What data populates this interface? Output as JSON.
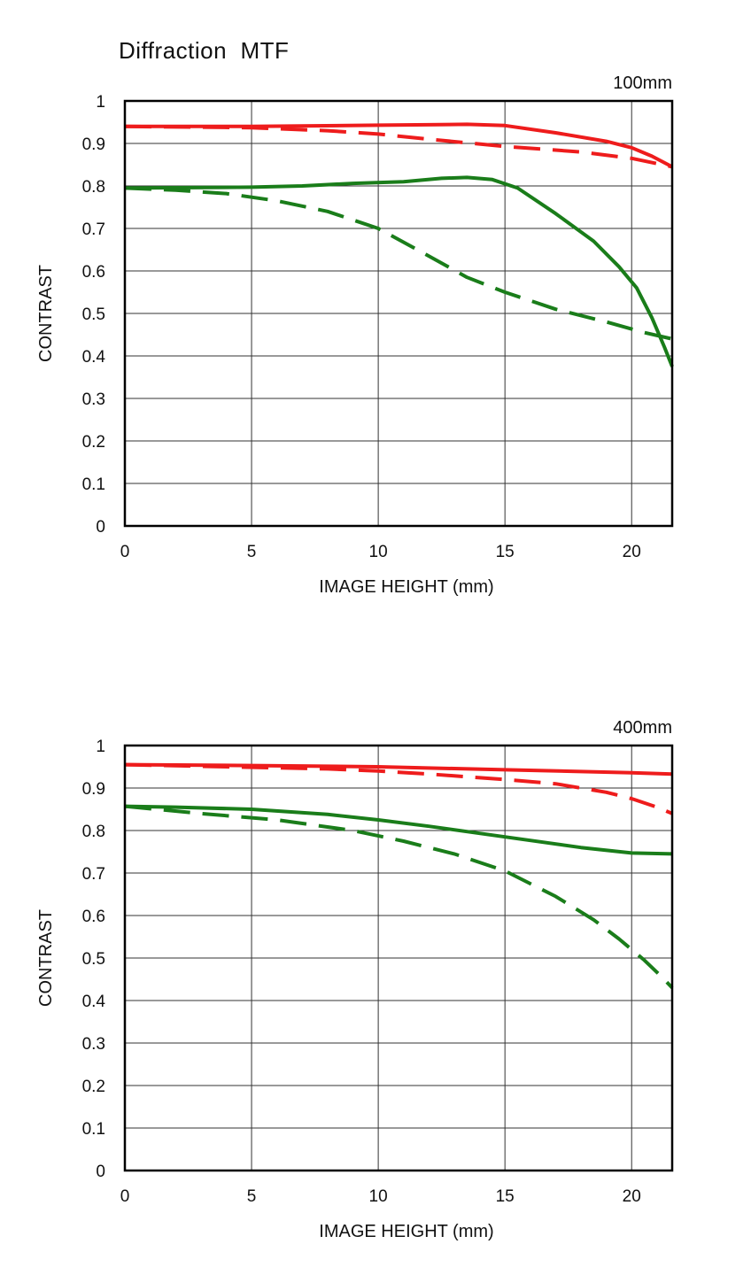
{
  "page": {
    "title": "Diffraction  MTF"
  },
  "colors": {
    "red": "#ee1c1c",
    "green": "#1a7d1a",
    "grid": "#333333",
    "frame": "#000000"
  },
  "chart_data": [
    {
      "type": "line",
      "focal_label": "100mm",
      "xlabel": "IMAGE HEIGHT (mm)",
      "ylabel": "CONTRAST",
      "xlim": [
        0,
        21.6
      ],
      "ylim": [
        0,
        1
      ],
      "xticks": [
        "0",
        "5",
        "10",
        "15",
        "20"
      ],
      "yticks": [
        "0",
        "0.1",
        "0.2",
        "0.3",
        "0.4",
        "0.5",
        "0.6",
        "0.7",
        "0.8",
        "0.9",
        "1"
      ],
      "grid": true,
      "series": [
        {
          "color": "red",
          "style": "solid",
          "x": [
            0,
            5,
            10,
            12,
            13.5,
            15,
            17,
            19,
            20,
            20.8,
            21.6
          ],
          "y": [
            0.94,
            0.94,
            0.943,
            0.944,
            0.945,
            0.942,
            0.925,
            0.905,
            0.89,
            0.87,
            0.845
          ]
        },
        {
          "color": "red",
          "style": "dashed",
          "x": [
            0,
            5,
            8,
            10,
            12,
            15,
            18,
            20,
            21.6
          ],
          "y": [
            0.94,
            0.937,
            0.93,
            0.922,
            0.91,
            0.893,
            0.88,
            0.865,
            0.845
          ]
        },
        {
          "color": "green",
          "style": "solid",
          "x": [
            0,
            5,
            7,
            9,
            11,
            12.5,
            13.5,
            14.5,
            15.5,
            17,
            18.5,
            19.5,
            20.2,
            20.8,
            21.3,
            21.6
          ],
          "y": [
            0.795,
            0.797,
            0.8,
            0.806,
            0.81,
            0.818,
            0.82,
            0.815,
            0.795,
            0.735,
            0.67,
            0.61,
            0.56,
            0.49,
            0.42,
            0.375
          ]
        },
        {
          "color": "green",
          "style": "dashed",
          "x": [
            0,
            2,
            4,
            6,
            8,
            10,
            12,
            13.5,
            15,
            17,
            19,
            20.5,
            21.6
          ],
          "y": [
            0.795,
            0.79,
            0.782,
            0.765,
            0.74,
            0.7,
            0.635,
            0.585,
            0.55,
            0.51,
            0.48,
            0.455,
            0.44
          ]
        }
      ]
    },
    {
      "type": "line",
      "focal_label": "400mm",
      "xlabel": "IMAGE HEIGHT (mm)",
      "ylabel": "CONTRAST",
      "xlim": [
        0,
        21.6
      ],
      "ylim": [
        0,
        1
      ],
      "xticks": [
        "0",
        "5",
        "10",
        "15",
        "20"
      ],
      "yticks": [
        "0",
        "0.1",
        "0.2",
        "0.3",
        "0.4",
        "0.5",
        "0.6",
        "0.7",
        "0.8",
        "0.9",
        "1"
      ],
      "grid": true,
      "series": [
        {
          "color": "red",
          "style": "solid",
          "x": [
            0,
            5,
            10,
            15,
            20,
            21.6
          ],
          "y": [
            0.955,
            0.953,
            0.95,
            0.943,
            0.936,
            0.933
          ]
        },
        {
          "color": "red",
          "style": "dashed",
          "x": [
            0,
            4,
            8,
            10,
            12,
            15,
            17,
            19,
            20,
            21,
            21.6
          ],
          "y": [
            0.955,
            0.95,
            0.945,
            0.94,
            0.933,
            0.92,
            0.91,
            0.89,
            0.875,
            0.855,
            0.84
          ]
        },
        {
          "color": "green",
          "style": "solid",
          "x": [
            0,
            2,
            5,
            8,
            10,
            12,
            15,
            18,
            20,
            21.6
          ],
          "y": [
            0.857,
            0.855,
            0.85,
            0.838,
            0.825,
            0.81,
            0.785,
            0.76,
            0.747,
            0.745
          ]
        },
        {
          "color": "green",
          "style": "dashed",
          "x": [
            0,
            3,
            6,
            9,
            11,
            13,
            15,
            17,
            18.5,
            19.5,
            20.5,
            21.2,
            21.6
          ],
          "y": [
            0.857,
            0.84,
            0.825,
            0.8,
            0.775,
            0.745,
            0.705,
            0.645,
            0.59,
            0.545,
            0.495,
            0.455,
            0.43
          ]
        }
      ]
    }
  ]
}
